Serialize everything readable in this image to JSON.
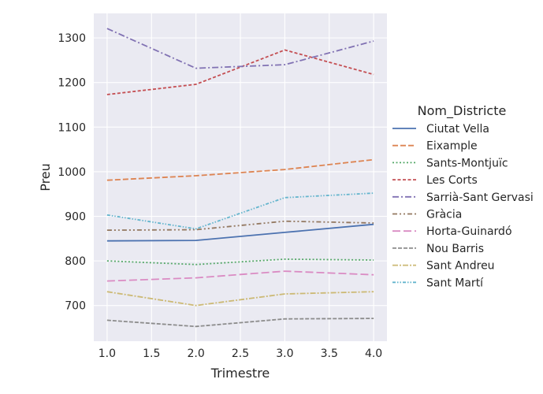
{
  "chart_data": {
    "type": "line",
    "xlabel": "Trimestre",
    "ylabel": "Preu",
    "xlim": [
      0.85,
      4.15
    ],
    "ylim": [
      620,
      1355
    ],
    "x": [
      1.0,
      2.0,
      3.0,
      4.0
    ],
    "x_ticks": [
      "1.0",
      "1.5",
      "2.0",
      "2.5",
      "3.0",
      "3.5",
      "4.0"
    ],
    "y_ticks": [
      "700",
      "800",
      "900",
      "1000",
      "1100",
      "1200",
      "1300"
    ],
    "grid": true,
    "legend_title": "Nom_Districte",
    "legend_position": "right",
    "series": [
      {
        "name": "Ciutat Vella",
        "color": "#4c72b0",
        "dash": "solid",
        "values": [
          845,
          846,
          864,
          882
        ]
      },
      {
        "name": "Eixample",
        "color": "#dd8452",
        "dash": "dashed",
        "values": [
          981,
          991,
          1005,
          1027
        ]
      },
      {
        "name": "Sants-Montjuïc",
        "color": "#55a868",
        "dash": "dotted",
        "values": [
          800,
          792,
          804,
          802
        ]
      },
      {
        "name": "Les Corts",
        "color": "#c44e52",
        "dash": "densedash",
        "values": [
          1173,
          1196,
          1273,
          1218
        ]
      },
      {
        "name": "Sarrià-Sant Gervasi",
        "color": "#8172b3",
        "dash": "dashdot",
        "values": [
          1321,
          1232,
          1240,
          1293
        ]
      },
      {
        "name": "Gràcia",
        "color": "#937860",
        "dash": "dashdotdot",
        "values": [
          869,
          870,
          889,
          885
        ]
      },
      {
        "name": "Horta-Guinardó",
        "color": "#da8bc3",
        "dash": "longdash",
        "values": [
          755,
          762,
          777,
          769
        ]
      },
      {
        "name": "Nou Barris",
        "color": "#8c8c8c",
        "dash": "longdash2",
        "values": [
          667,
          653,
          670,
          671
        ]
      },
      {
        "name": "Sant Andreu",
        "color": "#ccb974",
        "dash": "dashdot2",
        "values": [
          731,
          700,
          726,
          731
        ]
      },
      {
        "name": "Sant Martí",
        "color": "#64b5cd",
        "dash": "dashdotdot2",
        "values": [
          903,
          872,
          942,
          952
        ]
      }
    ]
  }
}
